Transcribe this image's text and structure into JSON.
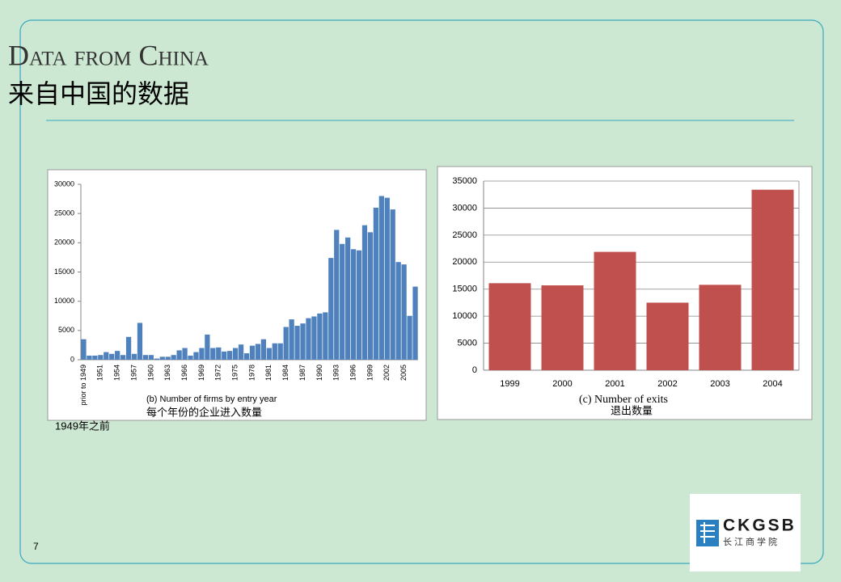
{
  "slide": {
    "title": "Data from China",
    "subtitle": "来自中国的数据",
    "note": "1949年之前",
    "page_number": "7",
    "logo": {
      "name": "CKGSB",
      "name_cn": "长江商学院"
    }
  },
  "chart_data": [
    {
      "type": "bar",
      "color": "#4f81bd",
      "grid": false,
      "title": "(b) Number of firms by entry year",
      "subtitle": "每个年份的企业进入数量",
      "categories": [
        "prior to 1949",
        null,
        null,
        "1951",
        null,
        null,
        "1954",
        null,
        null,
        "1957",
        null,
        null,
        "1960",
        null,
        null,
        "1963",
        null,
        null,
        "1966",
        null,
        null,
        "1969",
        null,
        null,
        "1972",
        null,
        null,
        "1975",
        null,
        null,
        "1978",
        null,
        null,
        "1981",
        null,
        null,
        "1984",
        null,
        null,
        "1987",
        null,
        null,
        "1990",
        null,
        null,
        "1993",
        null,
        null,
        "1996",
        null,
        null,
        "1999",
        null,
        null,
        "2002",
        null,
        null,
        "2005",
        null,
        null
      ],
      "values": [
        3500,
        700,
        700,
        800,
        1300,
        1000,
        1500,
        800,
        3900,
        1000,
        6300,
        800,
        800,
        200,
        500,
        500,
        800,
        1600,
        2000,
        700,
        1300,
        2000,
        4300,
        2000,
        2100,
        1400,
        1500,
        2000,
        2600,
        1100,
        2400,
        2700,
        3500,
        2000,
        2800,
        2800,
        5600,
        6900,
        5800,
        6200,
        7100,
        7400,
        7900,
        8100,
        17400,
        22200,
        19800,
        20900,
        18900,
        18700,
        23000,
        21800,
        26000,
        28000,
        27700,
        25700,
        16700,
        16300,
        7500,
        12500
      ],
      "ylim": [
        0,
        30000
      ],
      "yticks": [
        0,
        5000,
        10000,
        15000,
        20000,
        25000,
        30000
      ]
    },
    {
      "type": "bar",
      "color": "#c0504d",
      "grid": true,
      "title": "(c) Number of exits",
      "subtitle": "退出数量",
      "categories": [
        "1999",
        "2000",
        "2001",
        "2002",
        "2003",
        "2004"
      ],
      "values": [
        16100,
        15700,
        21900,
        12500,
        15800,
        33400
      ],
      "ylim": [
        0,
        35000
      ],
      "yticks": [
        0,
        5000,
        10000,
        15000,
        20000,
        25000,
        30000,
        35000
      ]
    }
  ]
}
